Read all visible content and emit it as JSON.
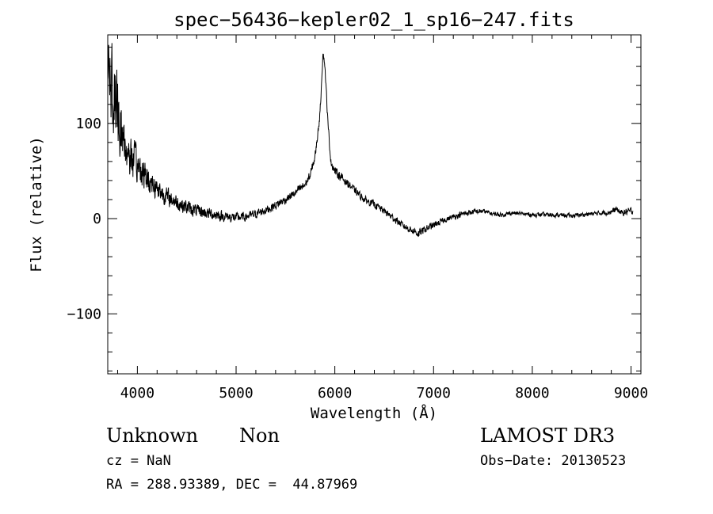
{
  "chart_data": {
    "type": "line",
    "title": "spec−56436−kepler02_1_sp16−247.fits",
    "xlabel": "Wavelength (Å)",
    "ylabel": "Flux (relative)",
    "xlim": [
      3700,
      9100
    ],
    "ylim": [
      -163,
      193
    ],
    "xticks": [
      4000,
      5000,
      6000,
      7000,
      8000,
      9000
    ],
    "xtick_labels": [
      "4000",
      "5000",
      "6000",
      "7000",
      "8000",
      "9000"
    ],
    "yticks": [
      -100,
      0,
      100
    ],
    "ytick_labels": [
      "−100",
      "0",
      "100"
    ],
    "grid": false,
    "series": [
      {
        "color": "#000000",
        "anchors": [
          [
            3700,
            150,
            60
          ],
          [
            3750,
            130,
            60
          ],
          [
            3800,
            110,
            48
          ],
          [
            3850,
            85,
            40
          ],
          [
            3900,
            70,
            32
          ],
          [
            4000,
            55,
            25
          ],
          [
            4100,
            42,
            20
          ],
          [
            4200,
            32,
            16
          ],
          [
            4300,
            23,
            13
          ],
          [
            4400,
            17,
            11
          ],
          [
            4500,
            12,
            10
          ],
          [
            4600,
            8,
            9
          ],
          [
            4700,
            6,
            8
          ],
          [
            4800,
            4,
            8
          ],
          [
            4900,
            2,
            7
          ],
          [
            5000,
            1,
            7
          ],
          [
            5100,
            2,
            6
          ],
          [
            5200,
            5,
            6
          ],
          [
            5300,
            9,
            6
          ],
          [
            5400,
            14,
            6
          ],
          [
            5500,
            20,
            6
          ],
          [
            5600,
            27,
            6
          ],
          [
            5700,
            36,
            6
          ],
          [
            5750,
            45,
            6
          ],
          [
            5800,
            65,
            6
          ],
          [
            5850,
            110,
            6
          ],
          [
            5880,
            175,
            4
          ],
          [
            5900,
            160,
            5
          ],
          [
            5930,
            100,
            6
          ],
          [
            5960,
            60,
            6
          ],
          [
            6000,
            50,
            6
          ],
          [
            6100,
            40,
            6
          ],
          [
            6200,
            30,
            5
          ],
          [
            6300,
            20,
            5
          ],
          [
            6400,
            15,
            5
          ],
          [
            6500,
            8,
            5
          ],
          [
            6600,
            0,
            5
          ],
          [
            6700,
            -8,
            5
          ],
          [
            6800,
            -13,
            5
          ],
          [
            6850,
            -16,
            6
          ],
          [
            6900,
            -12,
            5
          ],
          [
            7000,
            -7,
            5
          ],
          [
            7100,
            -2,
            4
          ],
          [
            7200,
            2,
            4
          ],
          [
            7300,
            5,
            4
          ],
          [
            7400,
            7,
            4
          ],
          [
            7500,
            8,
            3
          ],
          [
            7600,
            5,
            3
          ],
          [
            7700,
            4,
            3
          ],
          [
            7800,
            6,
            3
          ],
          [
            7900,
            5,
            3
          ],
          [
            8000,
            4,
            3
          ],
          [
            8200,
            4,
            3
          ],
          [
            8400,
            3,
            3
          ],
          [
            8600,
            5,
            3
          ],
          [
            8800,
            7,
            4
          ],
          [
            8850,
            10,
            4
          ],
          [
            8900,
            6,
            4
          ],
          [
            9000,
            8,
            5
          ]
        ],
        "anchors_format": "[wavelength, mean_flux, noise_amplitude]"
      }
    ]
  },
  "info": {
    "class_main": "Unknown",
    "class_sub": "Non",
    "survey": "LAMOST DR3",
    "cz": "cz = NaN",
    "obs_date": "Obs−Date: 20130523",
    "coords": "RA = 288.93389, DEC =  44.87969"
  }
}
